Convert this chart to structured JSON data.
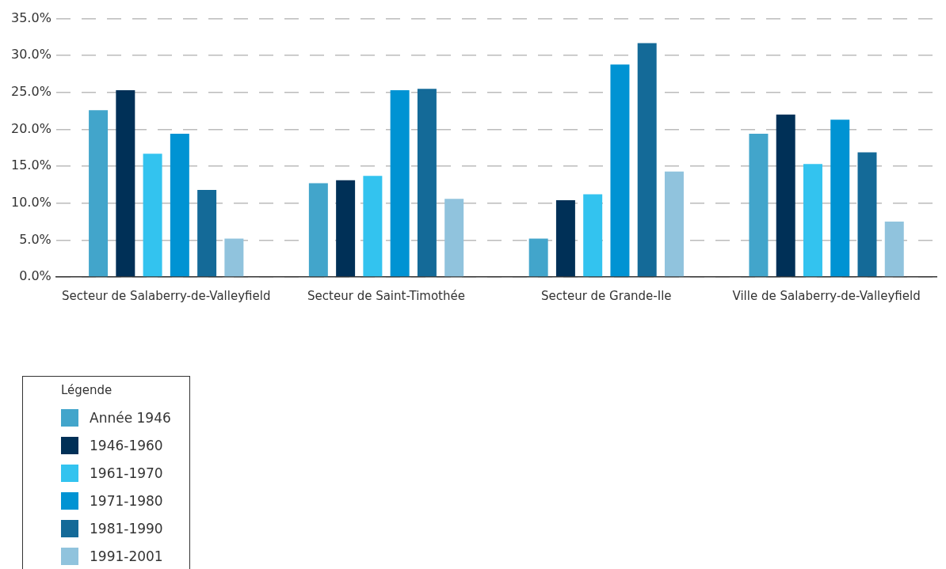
{
  "chart_data": {
    "type": "bar",
    "categories": [
      "Secteur de Salaberry-de-Valleyfield",
      "Secteur de Saint-Timothée",
      "Secteur de Grande-Ile",
      "Ville de Salaberry-de-Valleyfield"
    ],
    "series": [
      {
        "name": "Année 1946",
        "color": "#42a5cb",
        "values": [
          22.6,
          12.7,
          5.2,
          19.4
        ]
      },
      {
        "name": "1946-1960",
        "color": "#003057",
        "values": [
          25.3,
          13.1,
          10.4,
          22.0
        ]
      },
      {
        "name": "1961-1970",
        "color": "#33c3ef",
        "values": [
          16.7,
          13.7,
          11.2,
          15.3
        ]
      },
      {
        "name": "1971-1980",
        "color": "#0093d3",
        "values": [
          19.4,
          25.3,
          28.8,
          21.3
        ]
      },
      {
        "name": "1981-1990",
        "color": "#146a98",
        "values": [
          11.8,
          25.5,
          31.7,
          16.9
        ]
      },
      {
        "name": "1991-2001",
        "color": "#90c3dd",
        "values": [
          5.2,
          10.6,
          14.3,
          7.5
        ]
      }
    ],
    "ylim": [
      0,
      35
    ],
    "yticks": [
      {
        "value": 0,
        "label": "0.0%"
      },
      {
        "value": 5,
        "label": "5.0%"
      },
      {
        "value": 10,
        "label": "10.0%"
      },
      {
        "value": 15,
        "label": "15.0%"
      },
      {
        "value": 20,
        "label": "20.0%"
      },
      {
        "value": 25,
        "label": "25.0%"
      },
      {
        "value": 30,
        "label": "30.0%"
      },
      {
        "value": 35,
        "label": "35.0%"
      }
    ],
    "grid": "y",
    "legend": "bottom left",
    "legend_title": "Légende"
  }
}
